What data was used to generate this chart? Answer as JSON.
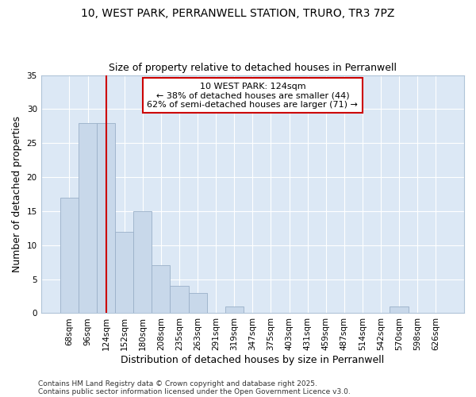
{
  "title1": "10, WEST PARK, PERRANWELL STATION, TRURO, TR3 7PZ",
  "title2": "Size of property relative to detached houses in Perranwell",
  "xlabel": "Distribution of detached houses by size in Perranwell",
  "ylabel": "Number of detached properties",
  "categories": [
    "68sqm",
    "96sqm",
    "124sqm",
    "152sqm",
    "180sqm",
    "208sqm",
    "235sqm",
    "263sqm",
    "291sqm",
    "319sqm",
    "347sqm",
    "375sqm",
    "403sqm",
    "431sqm",
    "459sqm",
    "487sqm",
    "514sqm",
    "542sqm",
    "570sqm",
    "598sqm",
    "626sqm"
  ],
  "values": [
    17,
    28,
    28,
    12,
    15,
    7,
    4,
    3,
    0,
    1,
    0,
    0,
    0,
    0,
    0,
    0,
    0,
    0,
    1,
    0,
    0
  ],
  "bar_color": "#c8d8ea",
  "bar_edge_color": "#9ab0c8",
  "vline_index": 2,
  "vline_color": "#cc0000",
  "annotation_text": "10 WEST PARK: 124sqm\n← 38% of detached houses are smaller (44)\n62% of semi-detached houses are larger (71) →",
  "annotation_box_facecolor": "#ffffff",
  "annotation_box_edgecolor": "#cc0000",
  "ylim": [
    0,
    35
  ],
  "yticks": [
    0,
    5,
    10,
    15,
    20,
    25,
    30,
    35
  ],
  "plot_bg_color": "#dce8f5",
  "fig_bg_color": "#ffffff",
  "grid_color": "#ffffff",
  "footer1": "Contains HM Land Registry data © Crown copyright and database right 2025.",
  "footer2": "Contains public sector information licensed under the Open Government Licence v3.0.",
  "title_fontsize": 10,
  "subtitle_fontsize": 9,
  "tick_fontsize": 7.5,
  "label_fontsize": 9,
  "annotation_fontsize": 8,
  "footer_fontsize": 6.5
}
